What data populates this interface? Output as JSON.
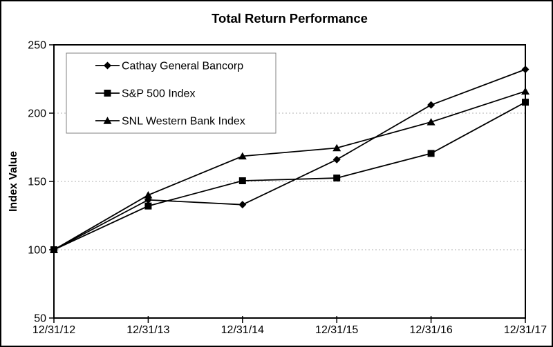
{
  "chart_data": {
    "type": "line",
    "title": "Total Return Performance",
    "ylabel": "Index Value",
    "xlabel": "",
    "categories": [
      "12/31/12",
      "12/31/13",
      "12/31/14",
      "12/31/15",
      "12/31/16",
      "12/31/17"
    ],
    "series": [
      {
        "name": "Cathay General Bancorp",
        "marker": "diamond",
        "values": [
          100,
          136.5,
          133,
          166,
          206,
          232
        ]
      },
      {
        "name": "S&P 500 Index",
        "marker": "square",
        "values": [
          100,
          132,
          150.5,
          152.5,
          170.5,
          208
        ]
      },
      {
        "name": "SNL Western Bank Index",
        "marker": "triangle",
        "values": [
          100,
          140,
          168.5,
          174.5,
          193.5,
          216
        ]
      }
    ],
    "ylim": [
      50,
      250
    ],
    "yticks": [
      50,
      100,
      150,
      200,
      250
    ],
    "gridline_values": [
      100,
      150,
      200
    ],
    "grid": "horizontal dashed",
    "legend_position": "inside top-left",
    "colors": {
      "series": "#000000",
      "gridline": "#b0b0b0",
      "frame": "#000000",
      "legend_border": "#808080",
      "background": "#ffffff",
      "text": "#000000"
    }
  }
}
